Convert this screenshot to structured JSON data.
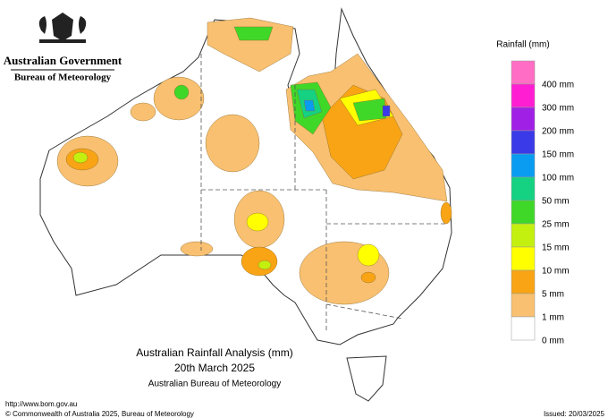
{
  "header": {
    "government": "Australian Government",
    "agency": "Bureau of Meteorology"
  },
  "title": {
    "line1": "Australian Rainfall Analysis (mm)",
    "line2": "20th March 2025",
    "line3": "Australian Bureau of Meteorology"
  },
  "legend": {
    "title": "Rainfall (mm)",
    "items": [
      {
        "label": "400 mm",
        "color": "#ff6ec4"
      },
      {
        "label": "300 mm",
        "color": "#ff1ed2"
      },
      {
        "label": "200 mm",
        "color": "#a020e6"
      },
      {
        "label": "150 mm",
        "color": "#3a3ae8"
      },
      {
        "label": "100 mm",
        "color": "#0a9cf0"
      },
      {
        "label": "50 mm",
        "color": "#14d282"
      },
      {
        "label": "25 mm",
        "color": "#40d828"
      },
      {
        "label": "15 mm",
        "color": "#c4f010"
      },
      {
        "label": "10 mm",
        "color": "#ffff00"
      },
      {
        "label": "5 mm",
        "color": "#f8a414"
      },
      {
        "label": "1 mm",
        "color": "#f8c070"
      },
      {
        "label": "0 mm",
        "color": "#ffffff"
      }
    ]
  },
  "footer": {
    "url": "http://www.bom.gov.au",
    "copyright": "© Commonwealth of Australia 2025, Bureau of Meteorology",
    "issued": "Issued: 20/03/2025"
  }
}
